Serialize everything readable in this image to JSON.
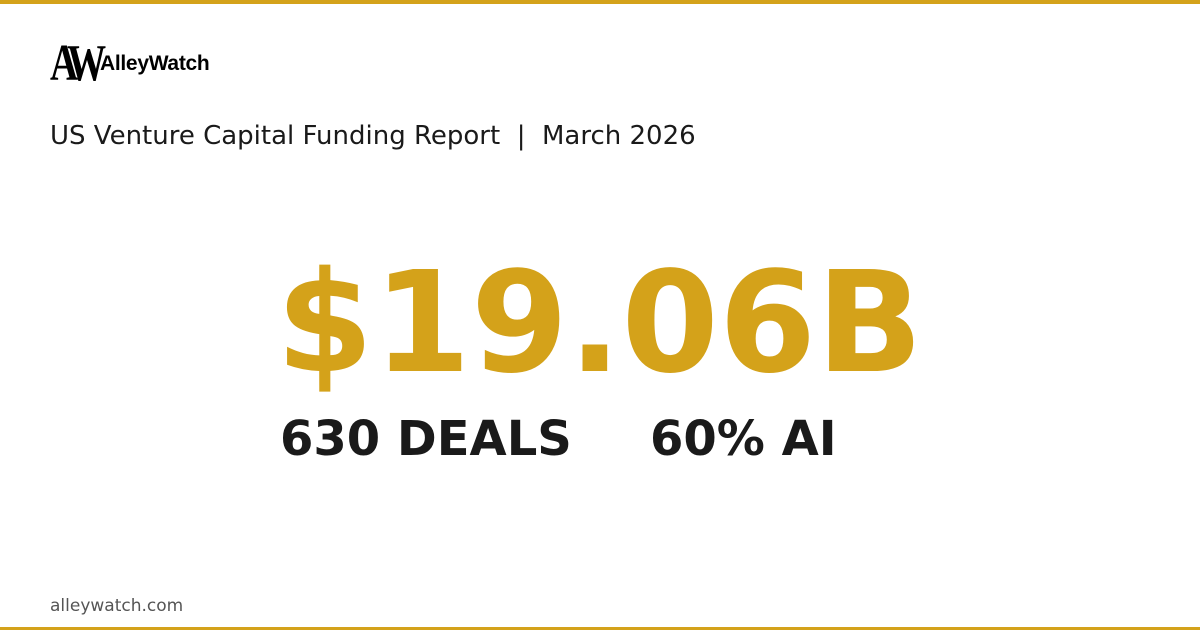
{
  "colors": {
    "accent": "#D4A21A",
    "text": "#1a1a1a",
    "footer": "#555555"
  },
  "logo": {
    "mark": "AW",
    "name": "AlleyWatch"
  },
  "title": "US Venture Capital Funding Report  |  March 2026",
  "headline_amount": "$19.06B",
  "stats": {
    "deals": "630 DEALS",
    "ai_share": "60% AI"
  },
  "footer": "alleywatch.com"
}
